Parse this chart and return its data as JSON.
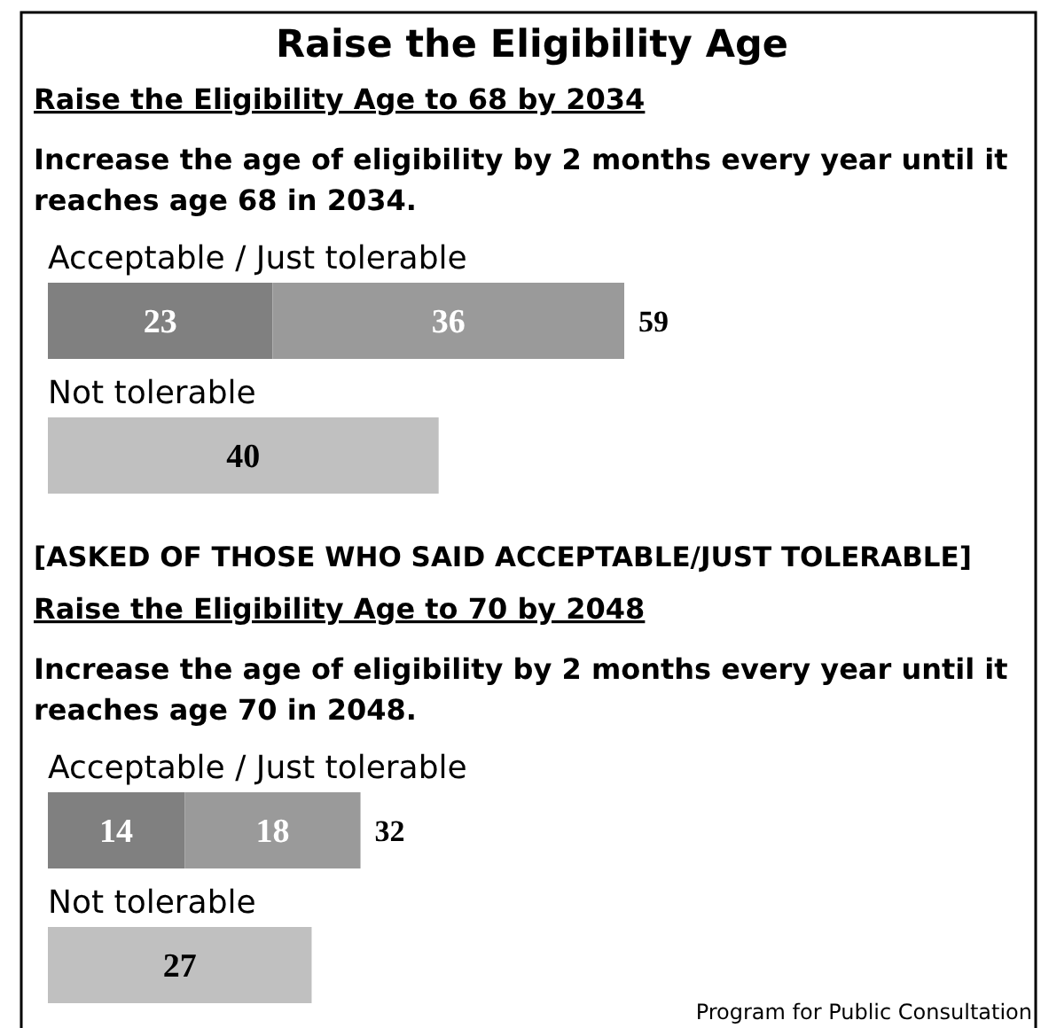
{
  "chart_data": [
    {
      "type": "bar",
      "orientation": "horizontal",
      "stacked": true,
      "title": "Raise the Eligibility Age",
      "subtitle": "Raise the Eligibility Age to 68 by 2034",
      "annotations": [
        "Increase the age of eligibility by 2 months every year until it reaches age 68 in 2034."
      ],
      "categories": [
        "Acceptable / Just tolerable",
        "Not tolerable"
      ],
      "series": [
        {
          "color": "#808080",
          "values": [
            23,
            null
          ]
        },
        {
          "color": "#9a9a9a",
          "values": [
            36,
            null
          ]
        },
        {
          "color": "#c0c0c0",
          "values": [
            null,
            40
          ]
        }
      ],
      "data_labels": true,
      "totals": [
        "59",
        null
      ]
    },
    {
      "type": "bar",
      "orientation": "horizontal",
      "stacked": true,
      "title": "Raise the Eligibility Age to 70 by 2048",
      "subtitle": "[ASKED OF THOSE WHO SAID ACCEPTABLE/JUST TOLERABLE]",
      "annotations": [
        "Increase the age of eligibility by 2 months every year until it reaches age 70 in 2048.",
        "Program for Public Consultation"
      ],
      "categories": [
        "Acceptable / Just tolerable",
        "Not tolerable"
      ],
      "series": [
        {
          "color": "#808080",
          "values": [
            14,
            null
          ]
        },
        {
          "color": "#9a9a9a",
          "values": [
            18,
            null
          ]
        },
        {
          "color": "#c0c0c0",
          "values": [
            null,
            27
          ]
        }
      ],
      "data_labels": true,
      "totals": [
        "32",
        null
      ]
    }
  ]
}
